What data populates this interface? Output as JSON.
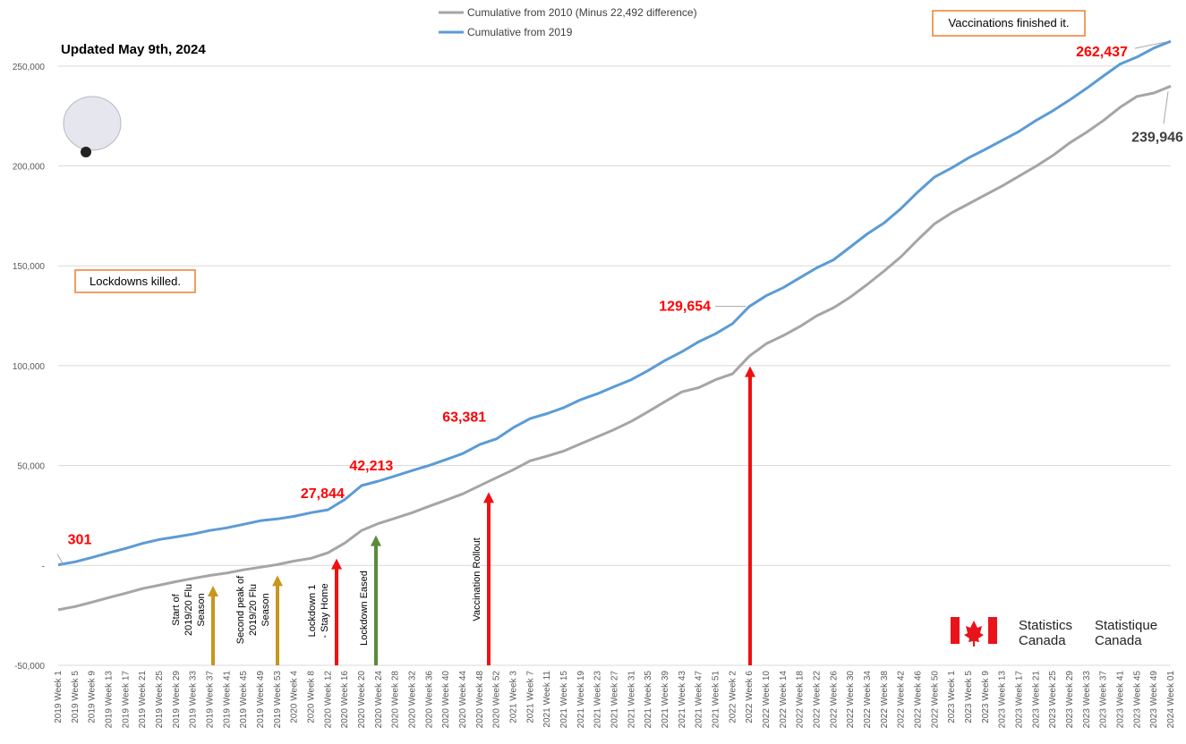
{
  "chart_data": {
    "type": "line",
    "subtitle": "Updated May 9th, 2024",
    "categories": [
      "2019 Week 1",
      "2019 Week 5",
      "2019 Week 9",
      "2019 Week 13",
      "2019 Week 17",
      "2019 Week 21",
      "2019 Week 25",
      "2019 Week 29",
      "2019 Week 33",
      "2019 Week 37",
      "2019 Week 41",
      "2019 Week 45",
      "2019 Week 49",
      "2019 Week 53",
      "2020 Week 4",
      "2020 Week 8",
      "2020 Week 12",
      "2020 Week 16",
      "2020 Week 20",
      "2020 Week 24",
      "2020 Week 28",
      "2020 Week 32",
      "2020 Week 36",
      "2020 Week 40",
      "2020 Week 44",
      "2020 Week 48",
      "2020 Week 52",
      "2021 Week 3",
      "2021 Week 7",
      "2021 Week 11",
      "2021 Week 15",
      "2021 Week 19",
      "2021 Week 23",
      "2021 Week 27",
      "2021 Week 31",
      "2021 Week 35",
      "2021 Week 39",
      "2021 Week 43",
      "2021 Week 47",
      "2021 Week 51",
      "2022 Week 2",
      "2022 Week 6",
      "2022 Week 10",
      "2022 Week 14",
      "2022 Week 18",
      "2022 Week 22",
      "2022 Week 26",
      "2022 Week 30",
      "2022 Week 34",
      "2022 Week 38",
      "2022 Week 42",
      "2022 Week 46",
      "2022 Week 50",
      "2023 Week 1",
      "2023 Week 5",
      "2023 Week 9",
      "2023 Week 13",
      "2023 Week 17",
      "2023 Week 21",
      "2023 Week 25",
      "2023 Week 29",
      "2023 Week 33",
      "2023 Week 37",
      "2023 Week 41",
      "2023 Week 45",
      "2023 Week 49",
      "2024 Week 01"
    ],
    "series": [
      {
        "name": "Cumulative from 2010 (Minus 22,492 difference)",
        "color": "#a5a5a5",
        "label_color": "#404040",
        "values": [
          -22191,
          -20600,
          -18400,
          -16100,
          -13900,
          -11600,
          -9900,
          -8100,
          -6500,
          -5000,
          -3800,
          -2200,
          -900,
          400,
          2200,
          3600,
          6300,
          11200,
          17500,
          21000,
          23700,
          26400,
          29600,
          32700,
          35800,
          39900,
          43900,
          47900,
          52400,
          54700,
          57300,
          60900,
          64500,
          68100,
          72100,
          77000,
          82000,
          86900,
          89000,
          93000,
          95900,
          104800,
          111000,
          115000,
          119600,
          125000,
          129000,
          134400,
          140700,
          147400,
          154600,
          163100,
          171100,
          176500,
          181000,
          185500,
          190000,
          194900,
          199800,
          205200,
          211500,
          216800,
          222700,
          229400,
          234800,
          236500,
          239946
        ],
        "value_labels": [
          null,
          null,
          null,
          null,
          null,
          null,
          null,
          null,
          null,
          null,
          null,
          null,
          null,
          null,
          null,
          null,
          null,
          null,
          null,
          null,
          null,
          null,
          null,
          null,
          null,
          null,
          null,
          null,
          null,
          null,
          null,
          null,
          null,
          null,
          null,
          null,
          null,
          null,
          null,
          null,
          null,
          null,
          null,
          null,
          null,
          null,
          null,
          null,
          null,
          null,
          null,
          null,
          null,
          null,
          null,
          null,
          null,
          null,
          null,
          null,
          null,
          null,
          null,
          null,
          null,
          null,
          "239,946"
        ]
      },
      {
        "name": "Cumulative from 2019",
        "color": "#5b9bd5",
        "label_color": "#ff0000",
        "values": [
          301,
          1800,
          4000,
          6300,
          8500,
          11000,
          13000,
          14300,
          15700,
          17500,
          18800,
          20600,
          22400,
          23300,
          24600,
          26400,
          27844,
          33000,
          40000,
          42213,
          44800,
          47500,
          50000,
          53000,
          56000,
          60500,
          63381,
          69000,
          73500,
          76000,
          79000,
          83000,
          86000,
          89600,
          93000,
          97600,
          102600,
          107000,
          112000,
          116000,
          121000,
          129654,
          135000,
          139000,
          144000,
          149000,
          153000,
          159500,
          166000,
          171500,
          178700,
          187000,
          194500,
          199000,
          204000,
          208300,
          212800,
          217300,
          222700,
          227600,
          233000,
          238800,
          245000,
          251000,
          254500,
          259000,
          262437
        ],
        "value_labels": [
          "301",
          null,
          null,
          null,
          null,
          null,
          null,
          null,
          null,
          null,
          null,
          null,
          null,
          null,
          null,
          null,
          "27,844",
          null,
          null,
          "42,213",
          null,
          null,
          null,
          null,
          null,
          null,
          "63,381",
          null,
          null,
          null,
          null,
          null,
          null,
          null,
          null,
          null,
          null,
          null,
          null,
          null,
          null,
          "129,654",
          null,
          null,
          null,
          null,
          null,
          null,
          null,
          null,
          null,
          null,
          null,
          null,
          null,
          null,
          null,
          null,
          null,
          null,
          null,
          null,
          null,
          null,
          null,
          null,
          "262,437"
        ]
      }
    ],
    "ylim": [
      -50000,
      275000
    ],
    "yticks": [
      {
        "value": -50000,
        "label": "-50,000"
      },
      {
        "value": 0,
        "label": "-"
      },
      {
        "value": 50000,
        "label": "50,000"
      },
      {
        "value": 100000,
        "label": "100,000"
      },
      {
        "value": 150000,
        "label": "150,000"
      },
      {
        "value": 200000,
        "label": "200,000"
      },
      {
        "value": 250000,
        "label": "250,000"
      }
    ],
    "grid": true,
    "notes": [
      "Vaccinations finished it.",
      "Lockdowns killed."
    ],
    "arrows": [
      {
        "text": [
          "Start of",
          "2019/20 Flu",
          "Season"
        ],
        "color": "#c8961e"
      },
      {
        "text": [
          "Second peak of",
          "2019/20 Flu",
          "Season"
        ],
        "color": "#c8961e"
      },
      {
        "text": [
          "Lockdown 1",
          "- Stay Home"
        ],
        "color": "#ee1111"
      },
      {
        "text": [
          "Lockdown Eased"
        ],
        "color": "#5b8a3a"
      },
      {
        "text": [
          "Vaccination Rollout"
        ],
        "color": "#ee1111"
      },
      {
        "color": "#ee1111"
      }
    ],
    "logo": [
      "Statistics",
      "Canada",
      "Statistique",
      "Canada"
    ]
  }
}
